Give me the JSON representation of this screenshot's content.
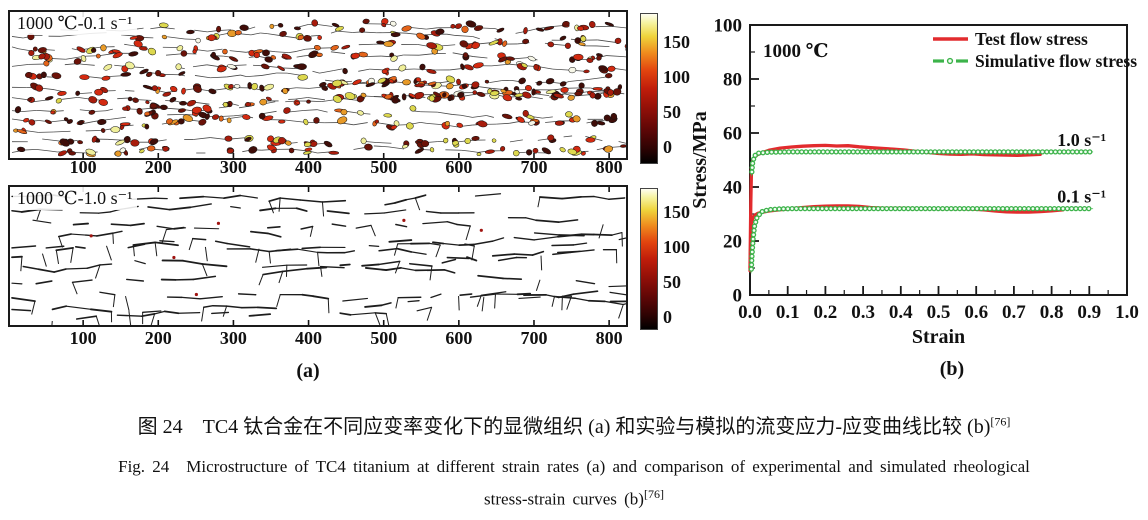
{
  "panel_a": {
    "subfigure_label": "(a)",
    "micrographs": [
      {
        "title": "1000 ℃-0.1 s⁻¹",
        "x_ticks": [
          "100",
          "200",
          "300",
          "400",
          "500",
          "600",
          "700",
          "800"
        ],
        "colorbar_ticks": [
          "0",
          "50",
          "100",
          "150"
        ]
      },
      {
        "title": "1000 ℃-1.0 s⁻¹",
        "x_ticks": [
          "100",
          "200",
          "300",
          "400",
          "500",
          "600",
          "700",
          "800"
        ],
        "colorbar_ticks": [
          "0",
          "50",
          "100",
          "150"
        ]
      }
    ],
    "colorbar_palette": [
      "#000000",
      "#5c0606",
      "#c01d0a",
      "#e2440f",
      "#ef8c1e",
      "#efd43c",
      "#fffef2"
    ]
  },
  "panel_b": {
    "subfigure_label": "(b)"
  },
  "chart_data": {
    "type": "line",
    "annotation": "1000 ℃",
    "xlabel": "Strain",
    "ylabel": "Stress/MPa",
    "xlim": [
      0.0,
      1.0
    ],
    "ylim": [
      0,
      100
    ],
    "x_tick_labels": [
      "0.0",
      "0.1",
      "0.2",
      "0.3",
      "0.4",
      "0.5",
      "0.6",
      "0.7",
      "0.8",
      "0.9",
      "1.0"
    ],
    "y_tick_labels": [
      "0",
      "20",
      "40",
      "60",
      "80",
      "100"
    ],
    "legend_position": "top-right",
    "legend": [
      {
        "label": "Test flow stress",
        "color": "#e22b2e",
        "style": "solid"
      },
      {
        "label": "Simulative flow stress",
        "color": "#3cb34a",
        "style": "dash-dot-circle"
      }
    ],
    "curve_annotations": [
      {
        "text": "1.0 s⁻¹",
        "x": 0.815,
        "y": 57.5
      },
      {
        "text": "0.1 s⁻¹",
        "x": 0.815,
        "y": 36.5
      }
    ],
    "series": [
      {
        "name": "Test flow stress (1.0 s⁻¹)",
        "type": "test",
        "color": "#e22b2e",
        "points": [
          [
            0.0,
            10
          ],
          [
            0.002,
            34
          ],
          [
            0.004,
            47
          ],
          [
            0.008,
            50.2
          ],
          [
            0.013,
            51.2
          ],
          [
            0.02,
            52.0
          ],
          [
            0.03,
            52.6
          ],
          [
            0.05,
            53.6
          ],
          [
            0.08,
            54.4
          ],
          [
            0.11,
            54.8
          ],
          [
            0.14,
            55.1
          ],
          [
            0.17,
            55.3
          ],
          [
            0.2,
            55.4
          ],
          [
            0.23,
            55.2
          ],
          [
            0.26,
            55.3
          ],
          [
            0.29,
            54.9
          ],
          [
            0.32,
            54.6
          ],
          [
            0.35,
            54.3
          ],
          [
            0.38,
            54.0
          ],
          [
            0.41,
            53.7
          ],
          [
            0.44,
            53.2
          ],
          [
            0.47,
            52.8
          ],
          [
            0.5,
            52.4
          ],
          [
            0.53,
            52.2
          ],
          [
            0.56,
            52.1
          ],
          [
            0.59,
            52.3
          ],
          [
            0.62,
            52.0
          ],
          [
            0.65,
            51.9
          ],
          [
            0.68,
            51.8
          ],
          [
            0.71,
            51.7
          ],
          [
            0.74,
            51.9
          ],
          [
            0.77,
            52.1
          ]
        ]
      },
      {
        "name": "Simulative flow stress (1.0 s⁻¹)",
        "type": "sim",
        "color": "#3cb34a",
        "points": [
          [
            0.004,
            44
          ],
          [
            0.007,
            49
          ],
          [
            0.012,
            51.5
          ],
          [
            0.02,
            52.5
          ],
          [
            0.05,
            52.9
          ],
          [
            0.1,
            53.0
          ],
          [
            0.91,
            53.0
          ]
        ]
      },
      {
        "name": "Test flow stress (0.1 s⁻¹)",
        "type": "test",
        "color": "#e22b2e",
        "points": [
          [
            0.0,
            9
          ],
          [
            0.002,
            20
          ],
          [
            0.004,
            26.5
          ],
          [
            0.008,
            28.8
          ],
          [
            0.013,
            29.6
          ],
          [
            0.02,
            30.2
          ],
          [
            0.03,
            30.6
          ],
          [
            0.05,
            31.1
          ],
          [
            0.08,
            31.6
          ],
          [
            0.11,
            32.0
          ],
          [
            0.14,
            32.4
          ],
          [
            0.17,
            32.7
          ],
          [
            0.2,
            32.9
          ],
          [
            0.23,
            33.0
          ],
          [
            0.26,
            33.0
          ],
          [
            0.29,
            32.8
          ],
          [
            0.32,
            32.4
          ],
          [
            0.35,
            32.2
          ],
          [
            0.38,
            32.1
          ],
          [
            0.41,
            32.1
          ],
          [
            0.44,
            32.0
          ],
          [
            0.47,
            32.0
          ],
          [
            0.5,
            32.0
          ],
          [
            0.53,
            31.9
          ],
          [
            0.56,
            31.9
          ],
          [
            0.59,
            31.8
          ],
          [
            0.62,
            31.5
          ],
          [
            0.65,
            31.1
          ],
          [
            0.68,
            30.8
          ],
          [
            0.71,
            30.7
          ],
          [
            0.74,
            30.7
          ],
          [
            0.77,
            30.9
          ],
          [
            0.8,
            31.2
          ],
          [
            0.83,
            31.5
          ]
        ]
      },
      {
        "name": "Simulative flow stress (0.1 s⁻¹)",
        "type": "sim",
        "color": "#3cb34a",
        "points": [
          [
            0.003,
            8
          ],
          [
            0.005,
            14
          ],
          [
            0.008,
            20.5
          ],
          [
            0.012,
            25.5
          ],
          [
            0.018,
            28.5
          ],
          [
            0.03,
            30.8
          ],
          [
            0.05,
            31.6
          ],
          [
            0.08,
            31.9
          ],
          [
            0.12,
            32.0
          ],
          [
            0.91,
            32.0
          ]
        ]
      }
    ]
  },
  "captions": {
    "zh": "图 24　TC4 钛合金在不同应变率变化下的显微组织 (a) 和实验与模拟的流变应力-应变曲线比较 (b)",
    "zh_ref": "[76]",
    "en_line1": "Fig. 24　Microstructure of TC4 titanium at different strain rates (a) and comparison of experimental and simulated rheological",
    "en_line2": "stress-strain curves (b)",
    "en_ref": "[76]"
  }
}
